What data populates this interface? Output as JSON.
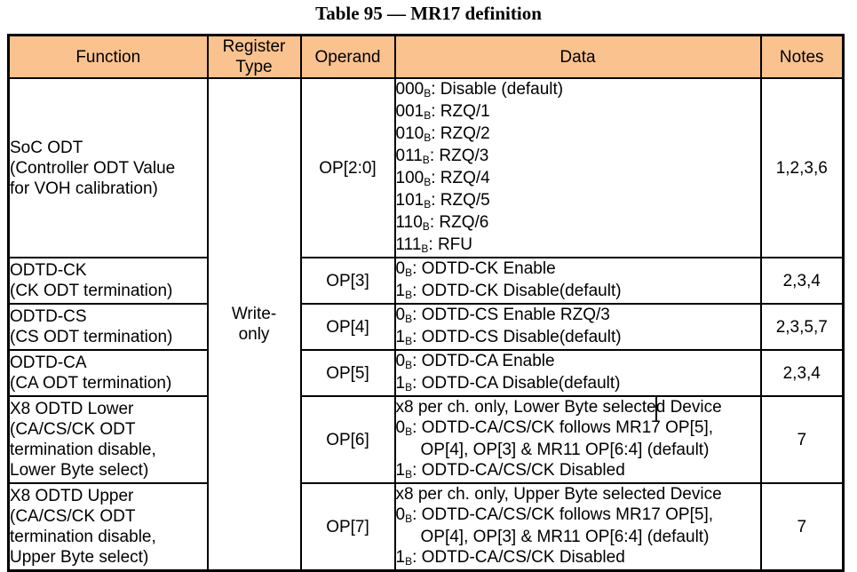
{
  "title": "Table 95 — MR17 definition",
  "colors": {
    "header_bg": "#F9C28F",
    "border": "#000000",
    "text": "#000000"
  },
  "table": {
    "columns": [
      "Function",
      "Register Type",
      "Operand",
      "Data",
      "Notes"
    ],
    "register_type_lines": [
      "Write-",
      "only"
    ],
    "bit_suffix": "B",
    "rows": [
      {
        "function_lines": [
          "SoC ODT",
          "(Controller ODT Value",
          "for VOH calibration)"
        ],
        "operand": "OP[2:0]",
        "data_lines": [
          {
            "bin": "000",
            "text": ": Disable (default)"
          },
          {
            "bin": "001",
            "text": ": RZQ/1"
          },
          {
            "bin": "010",
            "text": ": RZQ/2"
          },
          {
            "bin": "011",
            "text": ": RZQ/3"
          },
          {
            "bin": "100",
            "text": ": RZQ/4"
          },
          {
            "bin": "101",
            "text": ": RZQ/5"
          },
          {
            "bin": "110",
            "text": ": RZQ/6"
          },
          {
            "bin": "111",
            "text": ": RFU"
          }
        ],
        "notes": "1,2,3,6"
      },
      {
        "function_lines": [
          "ODTD-CK",
          "(CK ODT termination)"
        ],
        "operand": "OP[3]",
        "data_lines": [
          {
            "bin": "0",
            "text": ": ODTD-CK Enable"
          },
          {
            "bin": "1",
            "text": ": ODTD-CK Disable(default)"
          }
        ],
        "notes": "2,3,4"
      },
      {
        "function_lines": [
          "ODTD-CS",
          "(CS ODT termination)"
        ],
        "operand": "OP[4]",
        "data_lines": [
          {
            "bin": "0",
            "text": ": ODTD-CS Enable RZQ/3"
          },
          {
            "bin": "1",
            "text": ": ODTD-CS Disable(default)"
          }
        ],
        "notes": "2,3,5,7"
      },
      {
        "function_lines": [
          "ODTD-CA",
          "(CA ODT termination)"
        ],
        "operand": "OP[5]",
        "data_lines": [
          {
            "bin": "0",
            "text": ": ODTD-CA Enable"
          },
          {
            "bin": "1",
            "text": ": ODTD-CA Disable(default)"
          }
        ],
        "notes": "2,3,4"
      },
      {
        "function_lines": [
          "X8 ODTD Lower",
          "(CA/CS/CK ODT",
          "termination disable,",
          "Lower Byte select)"
        ],
        "operand": "OP[6]",
        "data_lines": [
          {
            "text": "x8 per ch. only, Lower Byte selected Device"
          },
          {
            "bin": "0",
            "text": ": ODTD-CA/CS/CK follows MR17 OP[5],"
          },
          {
            "text": "OP[4], OP[3] & MR11 OP[6:4] (default)",
            "indent": true
          },
          {
            "bin": "1",
            "text": ": ODTD-CA/CS/CK Disabled"
          }
        ],
        "notes": "7"
      },
      {
        "function_lines": [
          "X8 ODTD Upper",
          "(CA/CS/CK ODT",
          "termination disable,",
          "Upper Byte select)"
        ],
        "operand": "OP[7]",
        "data_lines": [
          {
            "text": "x8 per ch. only, Upper Byte selected Device"
          },
          {
            "bin": "0",
            "text": ": ODTD-CA/CS/CK follows MR17 OP[5],"
          },
          {
            "text": "OP[4], OP[3] & MR11 OP[6:4] (default)",
            "indent": true
          },
          {
            "bin": "1",
            "text": ": ODTD-CA/CS/CK Disabled"
          }
        ],
        "notes": "7"
      }
    ]
  }
}
